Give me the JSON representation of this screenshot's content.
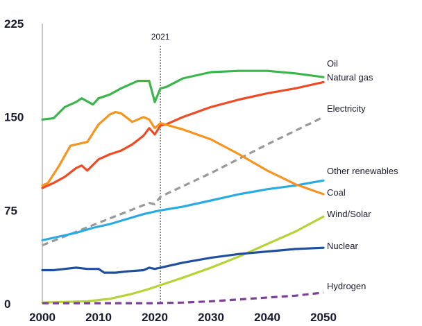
{
  "chart_data": {
    "type": "line",
    "title": "",
    "xlabel": "",
    "ylabel": "",
    "xlim": [
      2000,
      2050
    ],
    "ylim": [
      0,
      225
    ],
    "x_ticks": [
      "2000",
      "2010",
      "2020",
      "2030",
      "2040",
      "2050"
    ],
    "y_ticks": [
      "0",
      "75",
      "150",
      "225"
    ],
    "grid": false,
    "legend": "inline labels at right end of each line",
    "marker": {
      "x": 2021,
      "label": "2021"
    },
    "series": [
      {
        "name": "Oil",
        "color": "#3ab54a",
        "dashed": false,
        "points": [
          [
            2000,
            148
          ],
          [
            2002,
            149
          ],
          [
            2004,
            158
          ],
          [
            2006,
            162
          ],
          [
            2007,
            165
          ],
          [
            2009,
            160
          ],
          [
            2010,
            165
          ],
          [
            2012,
            168
          ],
          [
            2014,
            173
          ],
          [
            2016,
            177
          ],
          [
            2017,
            179
          ],
          [
            2019,
            179
          ],
          [
            2020,
            162
          ],
          [
            2021,
            173
          ],
          [
            2022,
            174
          ],
          [
            2025,
            181
          ],
          [
            2030,
            186
          ],
          [
            2035,
            187
          ],
          [
            2040,
            187
          ],
          [
            2045,
            185
          ],
          [
            2050,
            182
          ]
        ]
      },
      {
        "name": "Natural gas",
        "color": "#ef4a23",
        "dashed": false,
        "points": [
          [
            2000,
            93
          ],
          [
            2002,
            97
          ],
          [
            2004,
            102
          ],
          [
            2006,
            109
          ],
          [
            2007,
            111
          ],
          [
            2008,
            107
          ],
          [
            2010,
            116
          ],
          [
            2012,
            120
          ],
          [
            2014,
            123
          ],
          [
            2016,
            128
          ],
          [
            2018,
            135
          ],
          [
            2019,
            141
          ],
          [
            2020,
            136
          ],
          [
            2021,
            143
          ],
          [
            2022,
            144
          ],
          [
            2025,
            150
          ],
          [
            2030,
            158
          ],
          [
            2035,
            164
          ],
          [
            2040,
            169
          ],
          [
            2045,
            173
          ],
          [
            2050,
            178
          ]
        ]
      },
      {
        "name": "Electricity",
        "color": "#999999",
        "dashed": true,
        "points": [
          [
            2000,
            47
          ],
          [
            2010,
            65
          ],
          [
            2019,
            81
          ],
          [
            2020,
            80
          ],
          [
            2021,
            86
          ],
          [
            2030,
            105
          ],
          [
            2040,
            128
          ],
          [
            2050,
            150
          ]
        ]
      },
      {
        "name": "Other renewables",
        "color": "#29aae2",
        "dashed": false,
        "points": [
          [
            2000,
            51
          ],
          [
            2003,
            54
          ],
          [
            2006,
            57
          ],
          [
            2009,
            61
          ],
          [
            2012,
            64
          ],
          [
            2015,
            68
          ],
          [
            2018,
            72
          ],
          [
            2020,
            74
          ],
          [
            2021,
            75
          ],
          [
            2025,
            78
          ],
          [
            2030,
            83
          ],
          [
            2035,
            88
          ],
          [
            2040,
            92
          ],
          [
            2045,
            95
          ],
          [
            2050,
            99
          ]
        ]
      },
      {
        "name": "Coal",
        "color": "#f7941d",
        "dashed": false,
        "points": [
          [
            2000,
            95
          ],
          [
            2001,
            97
          ],
          [
            2003,
            111
          ],
          [
            2005,
            127
          ],
          [
            2007,
            129
          ],
          [
            2008,
            130
          ],
          [
            2010,
            144
          ],
          [
            2012,
            152
          ],
          [
            2013,
            154
          ],
          [
            2014,
            153
          ],
          [
            2016,
            146
          ],
          [
            2018,
            150
          ],
          [
            2019,
            148
          ],
          [
            2020,
            141
          ],
          [
            2021,
            145
          ],
          [
            2025,
            140
          ],
          [
            2030,
            132
          ],
          [
            2035,
            120
          ],
          [
            2040,
            107
          ],
          [
            2045,
            96
          ],
          [
            2050,
            88
          ]
        ]
      },
      {
        "name": "Wind/Solar",
        "color": "#b5d334",
        "dashed": false,
        "points": [
          [
            2000,
            1
          ],
          [
            2008,
            2
          ],
          [
            2012,
            4
          ],
          [
            2016,
            8
          ],
          [
            2019,
            12
          ],
          [
            2021,
            15
          ],
          [
            2025,
            21
          ],
          [
            2030,
            29
          ],
          [
            2035,
            38
          ],
          [
            2040,
            48
          ],
          [
            2045,
            58
          ],
          [
            2050,
            70
          ]
        ]
      },
      {
        "name": "Nuclear",
        "color": "#1f4e9e",
        "dashed": false,
        "points": [
          [
            2000,
            27
          ],
          [
            2002,
            27
          ],
          [
            2004,
            28
          ],
          [
            2006,
            29
          ],
          [
            2008,
            28
          ],
          [
            2010,
            28
          ],
          [
            2011,
            25
          ],
          [
            2013,
            25
          ],
          [
            2015,
            26
          ],
          [
            2018,
            27
          ],
          [
            2019,
            29
          ],
          [
            2020,
            28
          ],
          [
            2021,
            29
          ],
          [
            2025,
            33
          ],
          [
            2030,
            37
          ],
          [
            2035,
            40
          ],
          [
            2040,
            42
          ],
          [
            2045,
            44
          ],
          [
            2050,
            45
          ]
        ]
      },
      {
        "name": "Hydrogen",
        "color": "#7e3f98",
        "dashed": true,
        "points": [
          [
            2000,
            0.5
          ],
          [
            2020,
            0.5
          ],
          [
            2025,
            1
          ],
          [
            2030,
            2
          ],
          [
            2035,
            3.5
          ],
          [
            2040,
            5
          ],
          [
            2045,
            6.5
          ],
          [
            2050,
            9
          ]
        ]
      }
    ]
  }
}
